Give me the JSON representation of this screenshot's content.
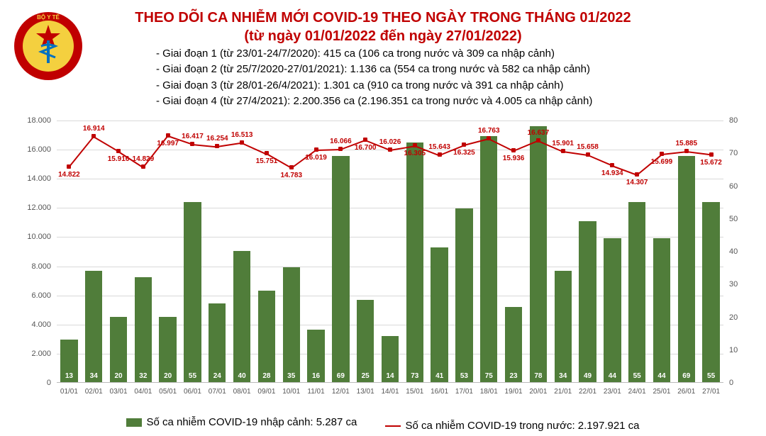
{
  "logo": {
    "outer_color": "#c00000",
    "inner_color": "#f4d03f",
    "star_color": "#c00000",
    "snake_color": "#0070c0",
    "top_text": "BỘ Y TẾ",
    "bottom_text": "MINISTRY OF HEALTH"
  },
  "title_line1": "THEO DÕI CA NHIỄM MỚI COVID-19 THEO NGÀY TRONG THÁNG 01/2022",
  "title_line2": "(từ ngày 01/01/2022 đến ngày 27/01/2022)",
  "period1": "- Giai đoạn 1 (từ 23/01-24/7/2020): 415 ca (106 ca trong nước và 309 ca nhập cảnh)",
  "period2": "- Giai đoạn 2 (từ 25/7/2020-27/01/2021): 1.136 ca (554 ca trong nước và 582 ca nhập cảnh)",
  "period3": "- Giai đoạn 3 (từ 28/01-26/4/2021): 1.301 ca (910 ca trong nước và 391 ca nhập cảnh)",
  "period4": "- Giai đoạn 4 (từ 27/4/2021): 2.200.356 ca (2.196.351 ca trong nước và 4.005 ca nhập cảnh)",
  "chart": {
    "bar_color": "#507d3a",
    "line_color": "#c00000",
    "grid_color": "#d9d9d9",
    "bg_color": "#ffffff",
    "y_left_max": 18000,
    "y_left_step": 2000,
    "y_right_max": 80,
    "y_right_step": 10,
    "y_left_ticks": [
      "0",
      "2.000",
      "4.000",
      "6.000",
      "8.000",
      "10.000",
      "12.000",
      "14.000",
      "16.000",
      "18.000"
    ],
    "y_right_ticks": [
      "0",
      "10",
      "20",
      "30",
      "40",
      "50",
      "60",
      "70",
      "80"
    ],
    "dates": [
      "01/01",
      "02/01",
      "03/01",
      "04/01",
      "05/01",
      "06/01",
      "07/01",
      "08/01",
      "09/01",
      "10/01",
      "11/01",
      "12/01",
      "13/01",
      "14/01",
      "15/01",
      "16/01",
      "17/01",
      "18/01",
      "19/01",
      "20/01",
      "21/01",
      "22/01",
      "23/01",
      "24/01",
      "25/01",
      "26/01",
      "27/01"
    ],
    "line_values": [
      14822,
      16914,
      15916,
      14829,
      16997,
      16417,
      16254,
      16513,
      15751,
      14783,
      16019,
      16066,
      16700,
      16026,
      16305,
      15643,
      16325,
      16763,
      15936,
      16637,
      15901,
      15658,
      14934,
      14307,
      15699,
      15885,
      15672
    ],
    "line_labels": [
      "14.822",
      "16.914",
      "15.916",
      "14.829",
      "16.997",
      "16.417",
      "16.254",
      "16.513",
      "15.751",
      "14.783",
      "16.019",
      "16.066",
      "16.700",
      "16.026",
      "16.305",
      "15.643",
      "16.325",
      "16.763",
      "15.936",
      "16.637",
      "15.901",
      "15.658",
      "14.934",
      "14.307",
      "15.699",
      "15.885",
      "15.672"
    ],
    "bar_values": [
      13,
      34,
      20,
      32,
      20,
      55,
      24,
      40,
      28,
      35,
      16,
      69,
      25,
      14,
      73,
      41,
      53,
      75,
      23,
      78,
      34,
      49,
      44,
      55,
      44,
      69,
      55
    ],
    "label_above": [
      0,
      1,
      0,
      1,
      0,
      1,
      1,
      1,
      0,
      0,
      0,
      1,
      0,
      1,
      0,
      1,
      0,
      1,
      0,
      1,
      1,
      1,
      0,
      0,
      0,
      1,
      0
    ],
    "bar_width": 0.7
  },
  "legend_bar": "Số ca nhiễm COVID-19 nhập cảnh: 5.287 ca",
  "legend_line": "Số ca nhiễm COVID-19 trong nước: 2.197.921 ca"
}
